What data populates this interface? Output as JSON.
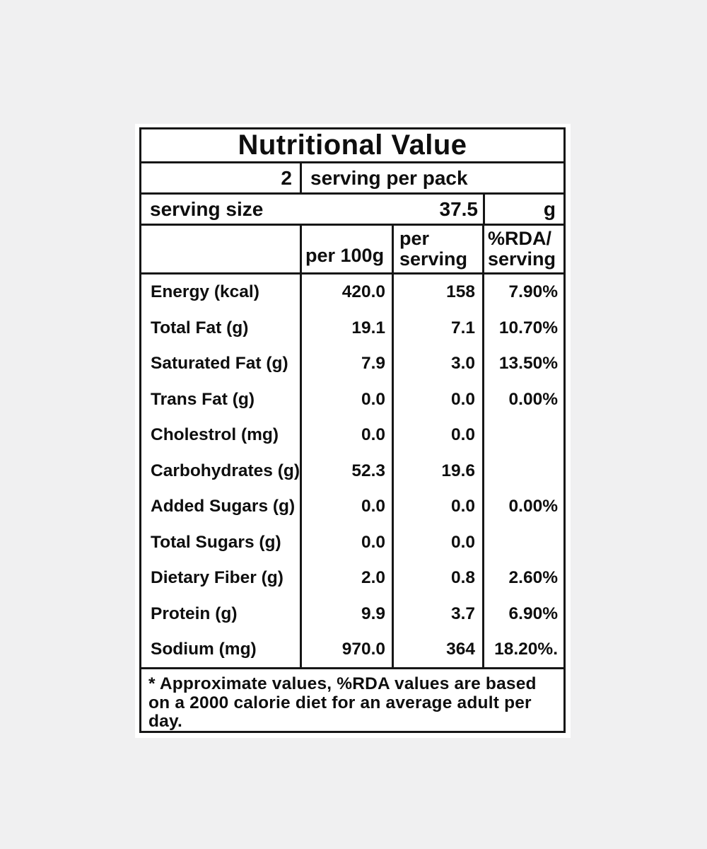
{
  "page": {
    "background": "#f0f0f1",
    "label_background": "#ffffff",
    "border_color": "#161616"
  },
  "title": "Nutritional Value",
  "pack_row": {
    "count": "2",
    "label": "serving per pack"
  },
  "size_row": {
    "label": "serving size",
    "value": "37.5",
    "unit": "g"
  },
  "column_headers": {
    "per_100g": "per 100g",
    "per_serving": "per\nserving",
    "rda_per_serving": "%RDA/\nserving"
  },
  "rows": [
    {
      "label": "Energy (kcal)",
      "per100g": "420.0",
      "perServing": "158",
      "rda": "7.90%"
    },
    {
      "label": "Total Fat (g)",
      "per100g": "19.1",
      "perServing": "7.1",
      "rda": "10.70%"
    },
    {
      "label": "Saturated Fat (g)",
      "per100g": "7.9",
      "perServing": "3.0",
      "rda": "13.50%"
    },
    {
      "label": "Trans Fat (g)",
      "per100g": "0.0",
      "perServing": "0.0",
      "rda": "0.00%"
    },
    {
      "label": "Cholestrol (mg)",
      "per100g": "0.0",
      "perServing": "0.0",
      "rda": ""
    },
    {
      "label": "Carbohydrates (g)",
      "per100g": "52.3",
      "perServing": "19.6",
      "rda": ""
    },
    {
      "label": "Added Sugars (g)",
      "per100g": "0.0",
      "perServing": "0.0",
      "rda": "0.00%"
    },
    {
      "label": "Total Sugars (g)",
      "per100g": "0.0",
      "perServing": "0.0",
      "rda": ""
    },
    {
      "label": "Dietary Fiber (g)",
      "per100g": "2.0",
      "perServing": "0.8",
      "rda": "2.60%"
    },
    {
      "label": "Protein (g)",
      "per100g": "9.9",
      "perServing": "3.7",
      "rda": "6.90%"
    },
    {
      "label": "Sodium (mg)",
      "per100g": "970.0",
      "perServing": "364",
      "rda": "18.20%."
    }
  ],
  "footnote": "* Approximate values, %RDA values are based on a 2000 calorie diet for an average adult per day."
}
